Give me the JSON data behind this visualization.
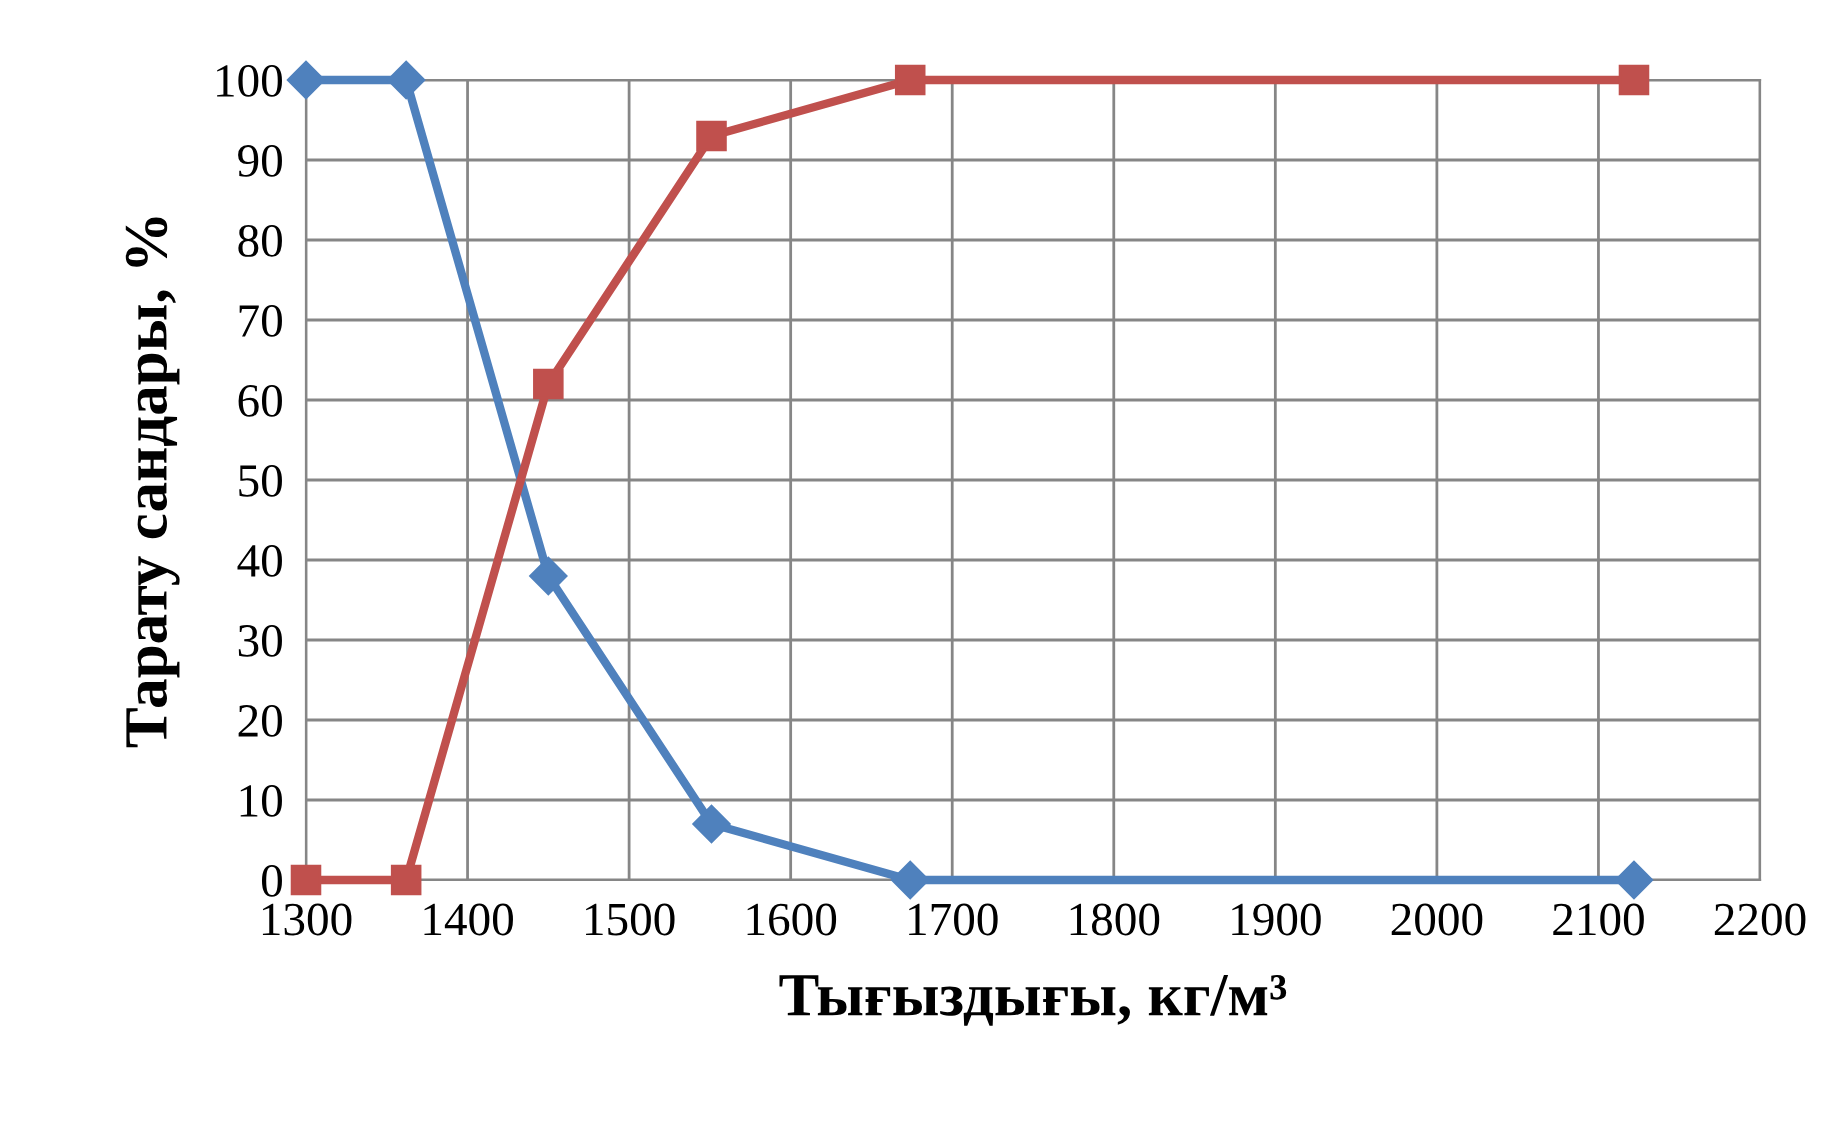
{
  "chart_data": {
    "type": "line",
    "xlabel": "Тығыздығы, кг/м³",
    "ylabel": "Тарату сандары, %",
    "xlim": [
      1300,
      2200
    ],
    "xticks": [
      1300,
      1400,
      1500,
      1600,
      1700,
      1800,
      1900,
      2000,
      2100,
      2200
    ],
    "ylim": [
      0,
      100
    ],
    "yticks": [
      0,
      10,
      20,
      30,
      40,
      50,
      60,
      70,
      80,
      90,
      100
    ],
    "grid": true,
    "series": [
      {
        "color": "#4f81bd",
        "marker": "diamond",
        "x": [
          1300,
          1362,
          1450,
          1551,
          1674,
          2122
        ],
        "values": [
          100,
          100,
          38,
          7,
          0,
          0
        ]
      },
      {
        "color": "#c0504d",
        "marker": "square",
        "x": [
          1300,
          1362,
          1450,
          1551,
          1674,
          2122
        ],
        "values": [
          0,
          0,
          62,
          93,
          100,
          100
        ]
      }
    ]
  }
}
